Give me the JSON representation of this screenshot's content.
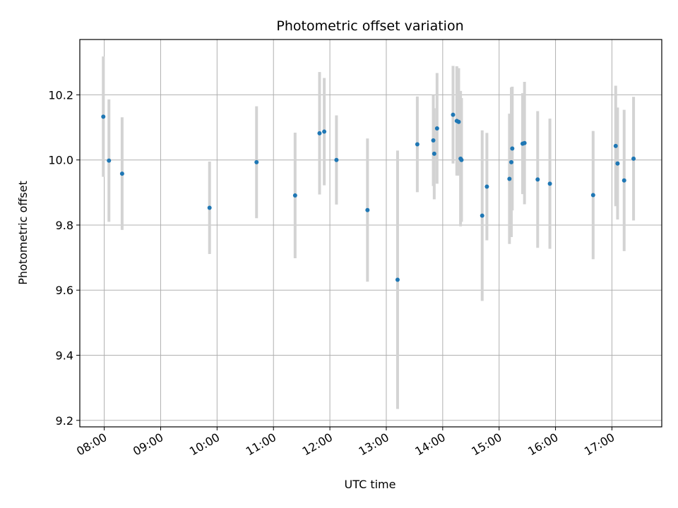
{
  "chart_data": {
    "type": "scatter",
    "title": "Photometric offset variation",
    "xlabel": "UTC time",
    "ylabel": "Photometric offset",
    "x_ticks": [
      "08:00",
      "09:00",
      "10:00",
      "11:00",
      "12:00",
      "13:00",
      "14:00",
      "15:00",
      "16:00",
      "17:00"
    ],
    "y_ticks": [
      "9.2",
      "9.4",
      "9.6",
      "9.8",
      "10.0",
      "10.2"
    ],
    "xlim": [
      "07:34",
      "17:53"
    ],
    "ylim": [
      9.18,
      10.37
    ],
    "grid": true,
    "point_color": "#1f77b4",
    "errorbar_color": "#d3d3d3",
    "series": [
      {
        "points": [
          {
            "x": "07:59",
            "y": 10.133,
            "err": 0.185
          },
          {
            "x": "08:05",
            "y": 9.998,
            "err": 0.188
          },
          {
            "x": "08:19",
            "y": 9.958,
            "err": 0.173
          },
          {
            "x": "09:52",
            "y": 9.853,
            "err": 0.142
          },
          {
            "x": "10:42",
            "y": 9.993,
            "err": 0.172
          },
          {
            "x": "11:23",
            "y": 9.891,
            "err": 0.193
          },
          {
            "x": "11:49",
            "y": 10.082,
            "err": 0.188
          },
          {
            "x": "11:54",
            "y": 10.087,
            "err": 0.165
          },
          {
            "x": "12:07",
            "y": 10.0,
            "err": 0.137
          },
          {
            "x": "12:40",
            "y": 9.846,
            "err": 0.22
          },
          {
            "x": "13:12",
            "y": 9.632,
            "err": 0.397
          },
          {
            "x": "13:33",
            "y": 10.048,
            "err": 0.147
          },
          {
            "x": "13:50",
            "y": 10.06,
            "err": 0.14
          },
          {
            "x": "13:51",
            "y": 10.019,
            "err": 0.14
          },
          {
            "x": "13:54",
            "y": 10.097,
            "err": 0.17
          },
          {
            "x": "14:11",
            "y": 10.139,
            "err": 0.15
          },
          {
            "x": "14:15",
            "y": 10.12,
            "err": 0.168
          },
          {
            "x": "14:17",
            "y": 10.117,
            "err": 0.165
          },
          {
            "x": "14:19",
            "y": 10.004,
            "err": 0.208
          },
          {
            "x": "14:20",
            "y": 10.0,
            "err": 0.19
          },
          {
            "x": "14:42",
            "y": 9.829,
            "err": 0.262
          },
          {
            "x": "14:47",
            "y": 9.918,
            "err": 0.165
          },
          {
            "x": "15:11",
            "y": 9.942,
            "err": 0.2
          },
          {
            "x": "15:13",
            "y": 9.993,
            "err": 0.23
          },
          {
            "x": "15:14",
            "y": 10.035,
            "err": 0.19
          },
          {
            "x": "15:25",
            "y": 10.05,
            "err": 0.155
          },
          {
            "x": "15:27",
            "y": 10.052,
            "err": 0.188
          },
          {
            "x": "15:41",
            "y": 9.94,
            "err": 0.21
          },
          {
            "x": "15:54",
            "y": 9.927,
            "err": 0.2
          },
          {
            "x": "16:40",
            "y": 9.892,
            "err": 0.197
          },
          {
            "x": "17:04",
            "y": 10.043,
            "err": 0.185
          },
          {
            "x": "17:06",
            "y": 9.989,
            "err": 0.172
          },
          {
            "x": "17:13",
            "y": 9.937,
            "err": 0.217
          },
          {
            "x": "17:23",
            "y": 10.004,
            "err": 0.19
          }
        ]
      }
    ]
  }
}
